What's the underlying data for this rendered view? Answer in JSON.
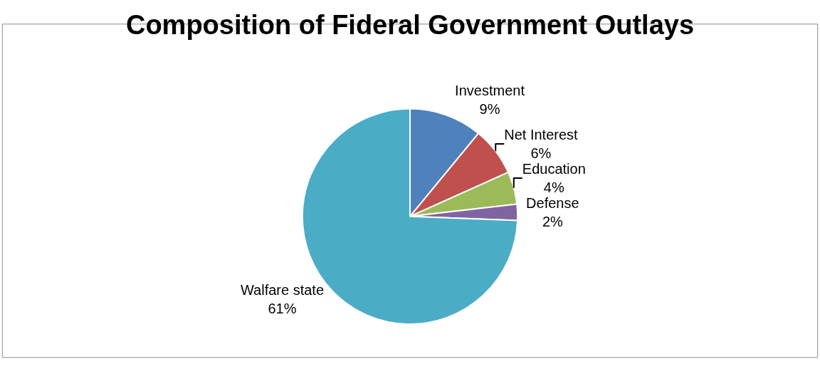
{
  "chart_data": {
    "type": "pie",
    "title": "Composition of Fideral Government Outlays",
    "categories": [
      "Investment",
      "Net Interest",
      "Education",
      "Defense",
      "Walfare state"
    ],
    "values": [
      9,
      6,
      4,
      2,
      61
    ],
    "value_labels": [
      "9%",
      "6%",
      "4%",
      "2%",
      "61%"
    ],
    "colors": [
      "#4f81bd",
      "#c0504d",
      "#9bbb59",
      "#8064a2",
      "#4bacc6"
    ],
    "legend": false
  }
}
